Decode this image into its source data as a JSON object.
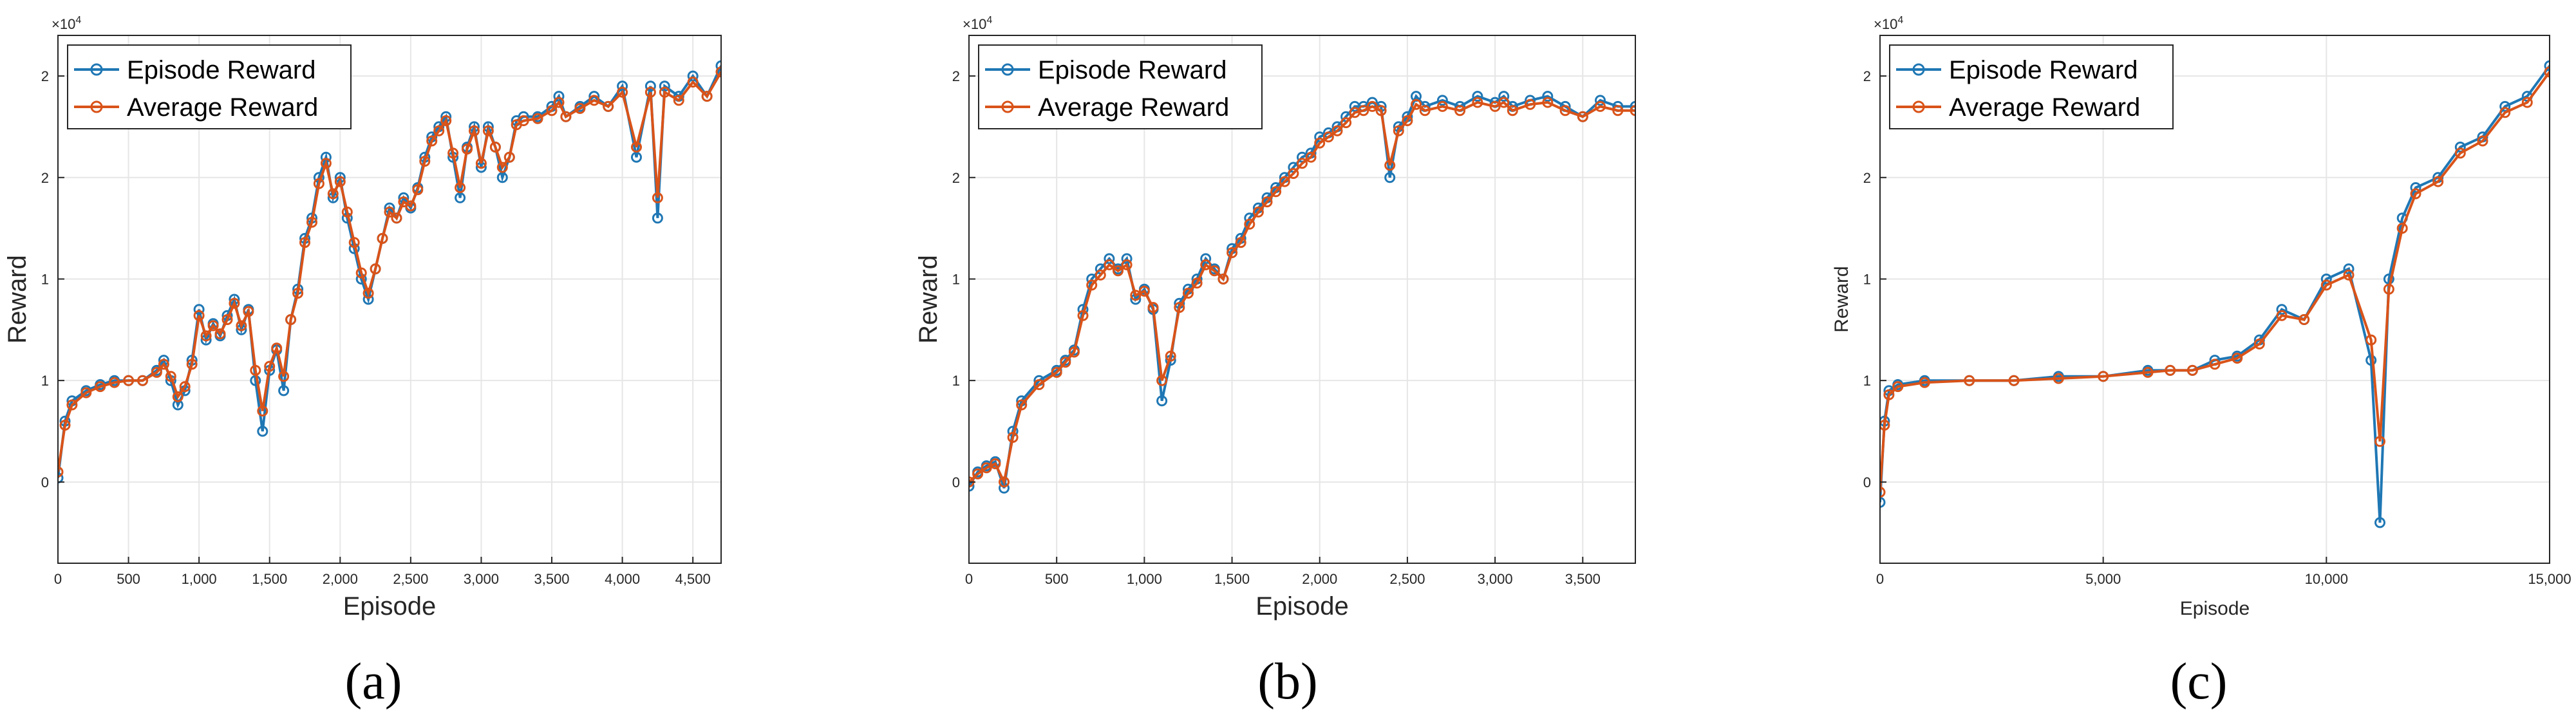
{
  "chart_data": [
    {
      "type": "line",
      "caption": "(a)",
      "xlabel": "Episode",
      "ylabel": "Reward",
      "exponent_label": "×10",
      "exponent_power": "4",
      "xlim": [
        0,
        4700
      ],
      "ylim": [
        -0.4,
        2.2
      ],
      "grid": true,
      "legend_position": "top-left",
      "x_ticks": [
        0,
        500,
        1000,
        1500,
        2000,
        2500,
        3000,
        3500,
        4000,
        4500
      ],
      "x_tick_labels": [
        "0",
        "500",
        "1,000",
        "1,500",
        "2,000",
        "2,500",
        "3,000",
        "3,500",
        "4,000",
        "4,500"
      ],
      "y_ticks": [
        0,
        0.5,
        1,
        1.5,
        2
      ],
      "y_tick_labels": [
        "0",
        "1",
        "1",
        "2",
        "2"
      ],
      "series": [
        {
          "name": "Episode Reward",
          "color": "#1f77b4",
          "x": [
            0,
            50,
            100,
            200,
            300,
            400,
            500,
            600,
            700,
            750,
            800,
            850,
            900,
            950,
            1000,
            1050,
            1100,
            1150,
            1200,
            1250,
            1300,
            1350,
            1400,
            1450,
            1500,
            1550,
            1600,
            1650,
            1700,
            1750,
            1800,
            1850,
            1900,
            1950,
            2000,
            2050,
            2100,
            2150,
            2200,
            2250,
            2300,
            2350,
            2400,
            2450,
            2500,
            2550,
            2600,
            2650,
            2700,
            2750,
            2800,
            2850,
            2900,
            2950,
            3000,
            3050,
            3100,
            3150,
            3200,
            3250,
            3300,
            3400,
            3500,
            3550,
            3600,
            3700,
            3800,
            3900,
            4000,
            4100,
            4200,
            4250,
            4300,
            4400,
            4500,
            4600,
            4700
          ],
          "values": [
            0.02,
            0.3,
            0.4,
            0.45,
            0.48,
            0.5,
            0.5,
            0.5,
            0.55,
            0.6,
            0.5,
            0.38,
            0.45,
            0.6,
            0.85,
            0.7,
            0.78,
            0.72,
            0.82,
            0.9,
            0.75,
            0.85,
            0.5,
            0.25,
            0.55,
            0.65,
            0.45,
            0.8,
            0.95,
            1.2,
            1.3,
            1.5,
            1.6,
            1.4,
            1.5,
            1.3,
            1.15,
            1.0,
            0.9,
            1.05,
            1.2,
            1.35,
            1.3,
            1.4,
            1.35,
            1.45,
            1.6,
            1.7,
            1.75,
            1.8,
            1.6,
            1.4,
            1.65,
            1.75,
            1.55,
            1.75,
            1.65,
            1.5,
            1.6,
            1.78,
            1.8,
            1.8,
            1.85,
            1.9,
            1.8,
            1.85,
            1.9,
            1.85,
            1.95,
            1.6,
            1.95,
            1.3,
            1.95,
            1.9,
            2.0,
            1.9,
            2.05
          ]
        },
        {
          "name": "Average Reward",
          "color": "#d95319",
          "x": [
            0,
            50,
            100,
            200,
            300,
            400,
            500,
            600,
            700,
            750,
            800,
            850,
            900,
            950,
            1000,
            1050,
            1100,
            1150,
            1200,
            1250,
            1300,
            1350,
            1400,
            1450,
            1500,
            1550,
            1600,
            1650,
            1700,
            1750,
            1800,
            1850,
            1900,
            1950,
            2000,
            2050,
            2100,
            2150,
            2200,
            2250,
            2300,
            2350,
            2400,
            2450,
            2500,
            2550,
            2600,
            2650,
            2700,
            2750,
            2800,
            2850,
            2900,
            2950,
            3000,
            3050,
            3100,
            3150,
            3200,
            3250,
            3300,
            3400,
            3500,
            3550,
            3600,
            3700,
            3800,
            3900,
            4000,
            4100,
            4200,
            4250,
            4300,
            4400,
            4500,
            4600,
            4700
          ],
          "values": [
            0.05,
            0.28,
            0.38,
            0.44,
            0.47,
            0.49,
            0.5,
            0.5,
            0.54,
            0.58,
            0.52,
            0.42,
            0.47,
            0.58,
            0.82,
            0.72,
            0.77,
            0.73,
            0.8,
            0.88,
            0.77,
            0.84,
            0.55,
            0.35,
            0.57,
            0.66,
            0.52,
            0.8,
            0.93,
            1.18,
            1.28,
            1.47,
            1.57,
            1.42,
            1.48,
            1.33,
            1.18,
            1.03,
            0.93,
            1.05,
            1.2,
            1.33,
            1.3,
            1.38,
            1.36,
            1.44,
            1.58,
            1.68,
            1.73,
            1.78,
            1.62,
            1.45,
            1.64,
            1.73,
            1.57,
            1.73,
            1.65,
            1.55,
            1.6,
            1.76,
            1.78,
            1.79,
            1.83,
            1.87,
            1.8,
            1.84,
            1.88,
            1.85,
            1.92,
            1.65,
            1.92,
            1.4,
            1.92,
            1.88,
            1.97,
            1.9,
            2.02
          ]
        }
      ]
    },
    {
      "type": "line",
      "caption": "(b)",
      "xlabel": "Episode",
      "ylabel": "Reward",
      "exponent_label": "×10",
      "exponent_power": "4",
      "xlim": [
        0,
        3800
      ],
      "ylim": [
        -0.4,
        2.2
      ],
      "grid": true,
      "legend_position": "top-left",
      "x_ticks": [
        0,
        500,
        1000,
        1500,
        2000,
        2500,
        3000,
        3500
      ],
      "x_tick_labels": [
        "0",
        "500",
        "1,000",
        "1,500",
        "2,000",
        "2,500",
        "3,000",
        "3,500"
      ],
      "y_ticks": [
        0,
        0.5,
        1,
        1.5,
        2
      ],
      "y_tick_labels": [
        "0",
        "1",
        "1",
        "2",
        "2"
      ],
      "series": [
        {
          "name": "Episode Reward",
          "color": "#1f77b4",
          "x": [
            0,
            50,
            100,
            150,
            200,
            250,
            300,
            400,
            500,
            550,
            600,
            650,
            700,
            750,
            800,
            850,
            900,
            950,
            1000,
            1050,
            1100,
            1150,
            1200,
            1250,
            1300,
            1350,
            1400,
            1450,
            1500,
            1550,
            1600,
            1650,
            1700,
            1750,
            1800,
            1850,
            1900,
            1950,
            2000,
            2050,
            2100,
            2150,
            2200,
            2250,
            2300,
            2350,
            2400,
            2450,
            2500,
            2550,
            2600,
            2700,
            2800,
            2900,
            3000,
            3050,
            3100,
            3200,
            3300,
            3400,
            3500,
            3600,
            3700,
            3800
          ],
          "values": [
            -0.02,
            0.05,
            0.08,
            0.1,
            -0.03,
            0.25,
            0.4,
            0.5,
            0.55,
            0.6,
            0.65,
            0.85,
            1.0,
            1.05,
            1.1,
            1.05,
            1.1,
            0.9,
            0.95,
            0.85,
            0.4,
            0.6,
            0.88,
            0.95,
            1.0,
            1.1,
            1.05,
            1.0,
            1.15,
            1.2,
            1.3,
            1.35,
            1.4,
            1.45,
            1.5,
            1.55,
            1.6,
            1.62,
            1.7,
            1.72,
            1.75,
            1.8,
            1.85,
            1.85,
            1.87,
            1.85,
            1.5,
            1.75,
            1.8,
            1.9,
            1.85,
            1.88,
            1.85,
            1.9,
            1.87,
            1.9,
            1.85,
            1.88,
            1.9,
            1.85,
            1.8,
            1.88,
            1.85,
            1.85
          ]
        },
        {
          "name": "Average Reward",
          "color": "#d95319",
          "x": [
            0,
            50,
            100,
            150,
            200,
            250,
            300,
            400,
            500,
            550,
            600,
            650,
            700,
            750,
            800,
            850,
            900,
            950,
            1000,
            1050,
            1100,
            1150,
            1200,
            1250,
            1300,
            1350,
            1400,
            1450,
            1500,
            1550,
            1600,
            1650,
            1700,
            1750,
            1800,
            1850,
            1900,
            1950,
            2000,
            2050,
            2100,
            2150,
            2200,
            2250,
            2300,
            2350,
            2400,
            2450,
            2500,
            2550,
            2600,
            2700,
            2800,
            2900,
            3000,
            3050,
            3100,
            3200,
            3300,
            3400,
            3500,
            3600,
            3700,
            3800
          ],
          "values": [
            0.0,
            0.04,
            0.07,
            0.09,
            0.0,
            0.22,
            0.38,
            0.48,
            0.54,
            0.59,
            0.64,
            0.82,
            0.97,
            1.02,
            1.07,
            1.04,
            1.07,
            0.92,
            0.94,
            0.86,
            0.5,
            0.62,
            0.86,
            0.93,
            0.98,
            1.07,
            1.04,
            1.0,
            1.13,
            1.18,
            1.27,
            1.33,
            1.38,
            1.43,
            1.48,
            1.52,
            1.57,
            1.6,
            1.67,
            1.7,
            1.73,
            1.77,
            1.82,
            1.83,
            1.85,
            1.83,
            1.56,
            1.73,
            1.78,
            1.86,
            1.83,
            1.85,
            1.83,
            1.87,
            1.85,
            1.87,
            1.83,
            1.86,
            1.87,
            1.83,
            1.8,
            1.85,
            1.83,
            1.83
          ]
        }
      ]
    },
    {
      "type": "line",
      "caption": "(c)",
      "xlabel": "Episode",
      "ylabel": "Reward",
      "exponent_label": "×10",
      "exponent_power": "4",
      "xlim": [
        0,
        15000
      ],
      "ylim": [
        -0.4,
        2.2
      ],
      "grid": true,
      "legend_position": "top-left",
      "x_ticks": [
        0,
        5000,
        10000,
        15000
      ],
      "x_tick_labels": [
        "0",
        "5,000",
        "10,000",
        "15,000"
      ],
      "y_ticks": [
        0,
        0.5,
        1,
        1.5,
        2
      ],
      "y_tick_labels": [
        "0",
        "1",
        "1",
        "2",
        "2"
      ],
      "series": [
        {
          "name": "Episode Reward",
          "color": "#1f77b4",
          "x": [
            0,
            100,
            200,
            400,
            1000,
            2000,
            3000,
            4000,
            5000,
            6000,
            6500,
            7000,
            7500,
            8000,
            8500,
            9000,
            9500,
            10000,
            10500,
            11000,
            11200,
            11400,
            11700,
            12000,
            12500,
            13000,
            13500,
            14000,
            14500,
            15000
          ],
          "values": [
            -0.1,
            0.3,
            0.45,
            0.48,
            0.5,
            0.5,
            0.5,
            0.52,
            0.52,
            0.55,
            0.55,
            0.55,
            0.6,
            0.62,
            0.7,
            0.85,
            0.8,
            1.0,
            1.05,
            0.6,
            -0.2,
            1.0,
            1.3,
            1.45,
            1.5,
            1.65,
            1.7,
            1.85,
            1.9,
            2.05
          ]
        },
        {
          "name": "Average Reward",
          "color": "#d95319",
          "x": [
            0,
            100,
            200,
            400,
            1000,
            2000,
            3000,
            4000,
            5000,
            6000,
            6500,
            7000,
            7500,
            8000,
            8500,
            9000,
            9500,
            10000,
            10500,
            11000,
            11200,
            11400,
            11700,
            12000,
            12500,
            13000,
            13500,
            14000,
            14500,
            15000
          ],
          "values": [
            -0.05,
            0.28,
            0.43,
            0.47,
            0.49,
            0.5,
            0.5,
            0.51,
            0.52,
            0.54,
            0.55,
            0.55,
            0.58,
            0.61,
            0.68,
            0.82,
            0.8,
            0.97,
            1.02,
            0.7,
            0.2,
            0.95,
            1.25,
            1.42,
            1.48,
            1.62,
            1.68,
            1.82,
            1.87,
            2.02
          ]
        }
      ]
    }
  ]
}
